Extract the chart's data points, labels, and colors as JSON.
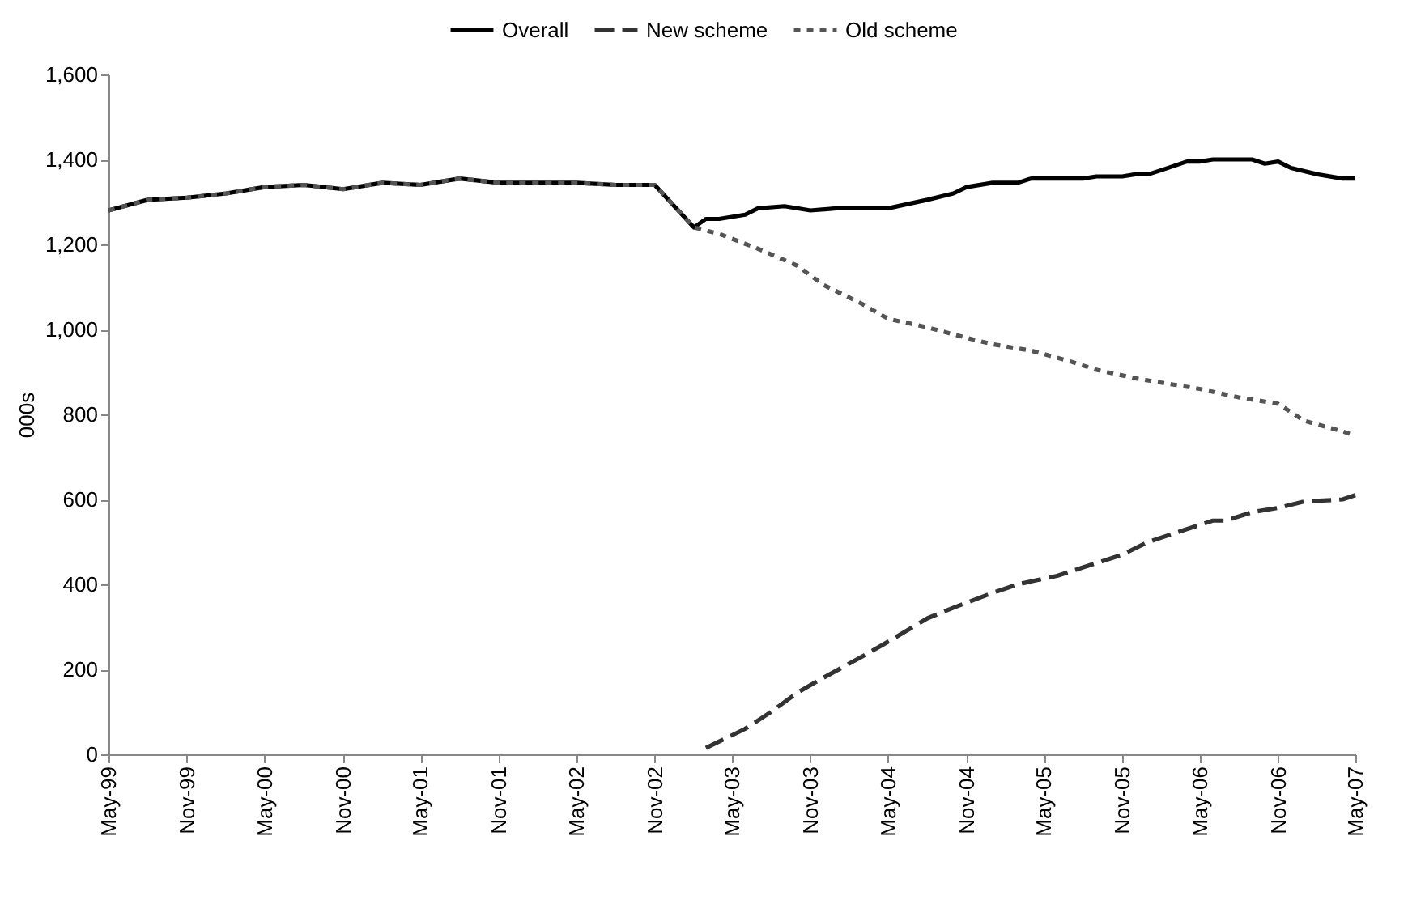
{
  "chart_data": {
    "type": "line",
    "ylabel": "000s",
    "legend": "top",
    "grid": false,
    "marker": "none",
    "xlim": [
      "1999-05",
      "2007-05"
    ],
    "ylim": [
      0,
      1600
    ],
    "yticks": [
      0,
      {
        "value": 200,
        "label": "200"
      },
      {
        "value": 400,
        "label": "400"
      },
      {
        "value": 600,
        "label": "600"
      },
      {
        "value": 800,
        "label": "800"
      },
      {
        "value": 1000,
        "label": "1,000"
      },
      {
        "value": 1200,
        "label": "1,200"
      },
      {
        "value": 1400,
        "label": "1,400"
      },
      {
        "value": 1600,
        "label": "1,600"
      }
    ],
    "xticks": [
      {
        "value": "1999-05",
        "label": "May-99"
      },
      {
        "value": "1999-11",
        "label": "Nov-99"
      },
      {
        "value": "2000-05",
        "label": "May-00"
      },
      {
        "value": "2000-11",
        "label": "Nov-00"
      },
      {
        "value": "2001-05",
        "label": "May-01"
      },
      {
        "value": "2001-11",
        "label": "Nov-01"
      },
      {
        "value": "2002-05",
        "label": "May-02"
      },
      {
        "value": "2002-11",
        "label": "Nov-02"
      },
      {
        "value": "2003-05",
        "label": "May-03"
      },
      {
        "value": "2003-11",
        "label": "Nov-03"
      },
      {
        "value": "2004-05",
        "label": "May-04"
      },
      {
        "value": "2004-11",
        "label": "Nov-04"
      },
      {
        "value": "2005-05",
        "label": "May-05"
      },
      {
        "value": "2005-11",
        "label": "Nov-05"
      },
      {
        "value": "2006-05",
        "label": "May-06"
      },
      {
        "value": "2006-11",
        "label": "Nov-06"
      },
      {
        "value": "2007-05",
        "label": "May-07"
      }
    ],
    "series": [
      {
        "name": "Overall",
        "color": "#000000",
        "line_style": "solid",
        "x": [
          "1999-05",
          "1999-08",
          "1999-11",
          "2000-02",
          "2000-05",
          "2000-08",
          "2000-11",
          "2001-02",
          "2001-05",
          "2001-08",
          "2001-11",
          "2002-02",
          "2002-05",
          "2002-08",
          "2002-11",
          "2003-02",
          "2003-03",
          "2003-04",
          "2003-06",
          "2003-07",
          "2003-09",
          "2003-11",
          "2004-01",
          "2004-05",
          "2004-08",
          "2004-10",
          "2004-11",
          "2005-01",
          "2005-03",
          "2005-04",
          "2005-08",
          "2005-09",
          "2005-11",
          "2005-12",
          "2006-01",
          "2006-02",
          "2006-04",
          "2006-05",
          "2006-06",
          "2006-09",
          "2006-10",
          "2006-11",
          "2006-12",
          "2007-02",
          "2007-04",
          "2007-05"
        ],
        "values": [
          1280,
          1305,
          1310,
          1320,
          1335,
          1340,
          1330,
          1345,
          1340,
          1355,
          1345,
          1345,
          1345,
          1340,
          1340,
          1240,
          1260,
          1260,
          1270,
          1285,
          1290,
          1280,
          1285,
          1285,
          1305,
          1320,
          1335,
          1345,
          1345,
          1355,
          1355,
          1360,
          1360,
          1365,
          1365,
          1375,
          1395,
          1395,
          1400,
          1400,
          1390,
          1395,
          1380,
          1365,
          1355,
          1355
        ]
      },
      {
        "name": "New scheme",
        "color": "#333333",
        "line_style": "dashed",
        "x": [
          "2003-03",
          "2003-06",
          "2003-08",
          "2003-10",
          "2003-12",
          "2004-03",
          "2004-05",
          "2004-08",
          "2004-10",
          "2005-01",
          "2005-03",
          "2005-06",
          "2005-08",
          "2005-11",
          "2006-01",
          "2006-04",
          "2006-06",
          "2006-07",
          "2006-09",
          "2006-11",
          "2007-01",
          "2007-04",
          "2007-05"
        ],
        "values": [
          15,
          60,
          100,
          145,
          180,
          230,
          265,
          320,
          345,
          380,
          400,
          420,
          440,
          470,
          500,
          530,
          550,
          550,
          570,
          580,
          595,
          600,
          610
        ]
      },
      {
        "name": "Old scheme",
        "color": "#555555",
        "line_style": "dotted",
        "x": [
          "1999-05",
          "1999-08",
          "1999-11",
          "2000-02",
          "2000-05",
          "2000-08",
          "2000-11",
          "2001-02",
          "2001-05",
          "2001-08",
          "2001-11",
          "2002-02",
          "2002-05",
          "2002-08",
          "2002-11",
          "2003-02",
          "2003-04",
          "2003-07",
          "2003-10",
          "2003-12",
          "2004-03",
          "2004-05",
          "2004-08",
          "2004-11",
          "2005-01",
          "2005-04",
          "2005-07",
          "2005-09",
          "2005-12",
          "2006-03",
          "2006-05",
          "2006-08",
          "2006-11",
          "2007-01",
          "2007-04",
          "2007-05"
        ],
        "values": [
          1280,
          1305,
          1310,
          1320,
          1335,
          1340,
          1330,
          1345,
          1340,
          1355,
          1345,
          1345,
          1345,
          1340,
          1340,
          1240,
          1225,
          1190,
          1150,
          1105,
          1060,
          1025,
          1005,
          980,
          965,
          950,
          925,
          905,
          885,
          870,
          860,
          840,
          825,
          785,
          760,
          750
        ]
      }
    ]
  }
}
